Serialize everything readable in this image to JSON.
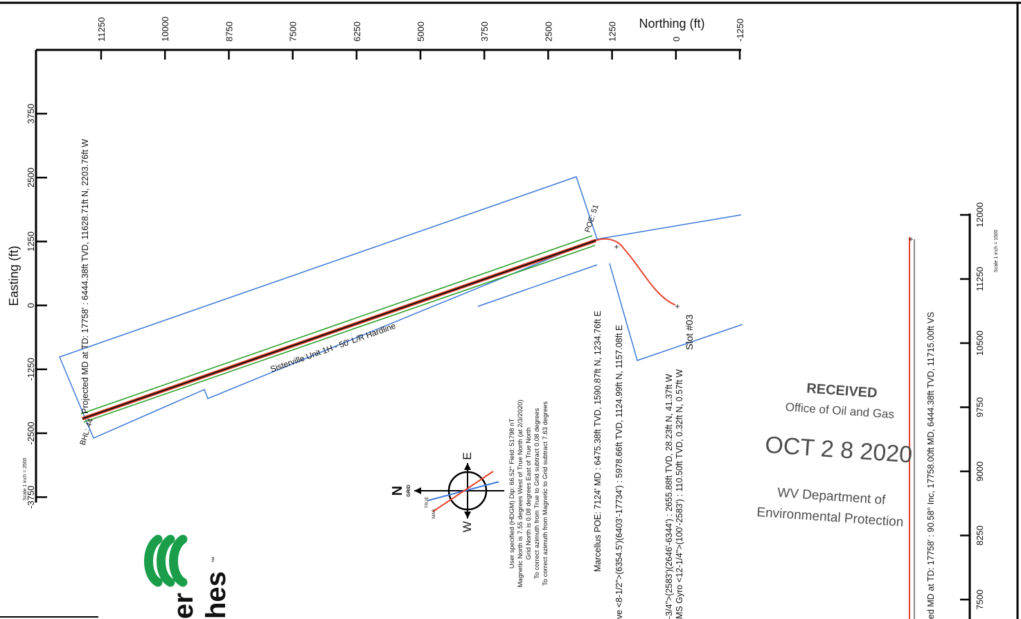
{
  "plan_view": {
    "axis_top_title": "Northing (ft)",
    "axis_left_title": "Easting (ft)",
    "northing_ticks": [
      "11250",
      "10000",
      "8750",
      "7500",
      "6250",
      "5000",
      "3750",
      "2500",
      "1250",
      "0",
      "-1250"
    ],
    "easting_ticks": [
      "3750",
      "2500",
      "1250",
      "0",
      "-1250",
      "-2500",
      "-3750"
    ],
    "scale_label": "Scale 1 inch = 2500"
  },
  "annotations": {
    "projected_td": "Projected MD at TD: 17758' : 6444.38ft TVD, 11628.71ft N, 2203.76ft W",
    "unit_label": "Sisterville Unit 1H - 50' L/R Hardline",
    "bhl": "BHL: 44",
    "poe": "POE: 51",
    "marcellus_poe": "Marcellus POE: 7124' MD : 6475.38ft TVD, 1590.87ft N, 1234.76ft E",
    "casing_1": "ve <8-1/2\">(6354.5')(6403'-17734') : 5978.66ft TVD, 1124.99ft N, 1157.08ft E",
    "casing_2": "-3/4\">(2583')(2646'-6344') : 2655.88ft TVD, 28.23ft N, 41.37ft W",
    "casing_3": "MS Gyro <12-1/4\">(100'-2583') : 110.50ft TVD, 0.32ft N, 0.57ft W",
    "slot": "Slot #03"
  },
  "magnetic_notes": [
    "User specified (HDGM) Dip: 66.52°  Field: 51798 nT",
    "Magnetic North is 7.55 degrees West of True North (at 2/3/2020)",
    "Grid North is 0.08 degrees East of True North",
    "To correct azimuth from True to Grid subtract 0.08 degrees",
    "To correct azimuth from Magnetic to Grid subtract 7.63 degrees"
  ],
  "compass": {
    "n": "N",
    "n_sub": "GRID",
    "e": "E",
    "w": "W",
    "true_label": "TRUE",
    "mag_label": "MAG"
  },
  "vertical_section": {
    "label": "ed MD at TD: 17758' : 90.58° Inc, 17758.00ft MD, 6444.38ft TVD, 11715.00ft VS",
    "ticks": [
      "12000",
      "11250",
      "10500",
      "9750",
      "9000",
      "8250",
      "7500"
    ],
    "scale_label": "Scale 1 inch = 1500"
  },
  "stamp": {
    "received": "RECEIVED",
    "office": "Office of Oil and Gas",
    "date": "OCT 2 8 2020",
    "dept": "WV Department of",
    "env": "Environmental Protection"
  },
  "logo": {
    "text_a": "er",
    "text_b": "hes",
    "tm": "™"
  },
  "colors": {
    "lease_line": "#3b78d8",
    "hardline": "#2ca02c",
    "wellpath": "#e8402a",
    "path_core": "#111111",
    "marker": "#f0a020",
    "logo": "#1a9e4a"
  }
}
